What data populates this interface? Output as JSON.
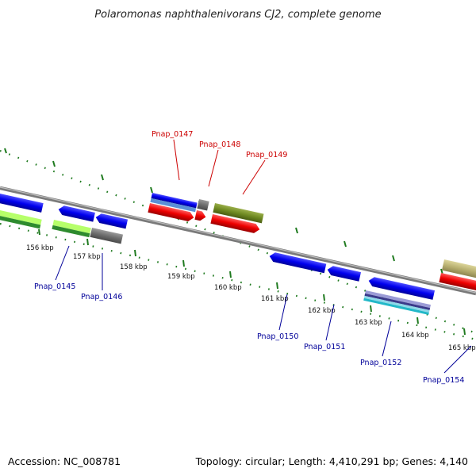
{
  "title": "Polaromonas naphthalenivorans CJ2, complete genome",
  "footer": {
    "accession": "Accession: NC_008781",
    "summary": "Topology: circular; Length: 4,410,291 bp; Genes: 4,140"
  },
  "ticks": [
    "156 kbp",
    "157 kbp",
    "158 kbp",
    "159 kbp",
    "160 kbp",
    "161 kbp",
    "162 kbp",
    "163 kbp",
    "164 kbp",
    "165 kbp"
  ],
  "gene_labels": {
    "top": [
      "Pnap_0147",
      "Pnap_0148",
      "Pnap_0149"
    ],
    "bottom": [
      "Pnap_0145",
      "Pnap_0146",
      "Pnap_0150",
      "Pnap_0151",
      "Pnap_0152",
      "Pnap_0154"
    ]
  },
  "colors": {
    "forward_gene": "#ee0000",
    "reverse_gene": "#0000ee",
    "backbone": "#8a8a8a",
    "tick": "#1f7a1f",
    "label_red": "#cc0000",
    "label_blue": "#000099"
  }
}
